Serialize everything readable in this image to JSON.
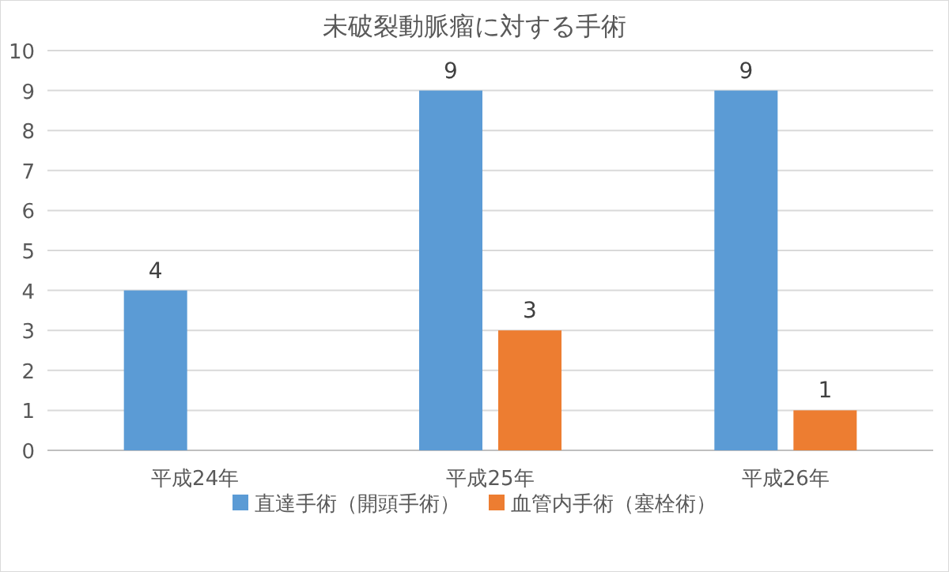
{
  "chart_data": {
    "type": "bar",
    "title": "未破裂動脈瘤に対する手術",
    "categories": [
      "平成24年",
      "平成25年",
      "平成26年"
    ],
    "series": [
      {
        "name": "直達手術（開頭手術）",
        "color": "#5b9bd5",
        "values": [
          4,
          9,
          9
        ]
      },
      {
        "name": "血管内手術（塞栓術）",
        "color": "#ed7d31",
        "values": [
          null,
          3,
          1
        ]
      }
    ],
    "ylim": [
      0,
      10
    ],
    "yticks": [
      0,
      1,
      2,
      3,
      4,
      5,
      6,
      7,
      8,
      9,
      10
    ],
    "grid": "y",
    "legend": "bottom",
    "data_labels": true
  }
}
